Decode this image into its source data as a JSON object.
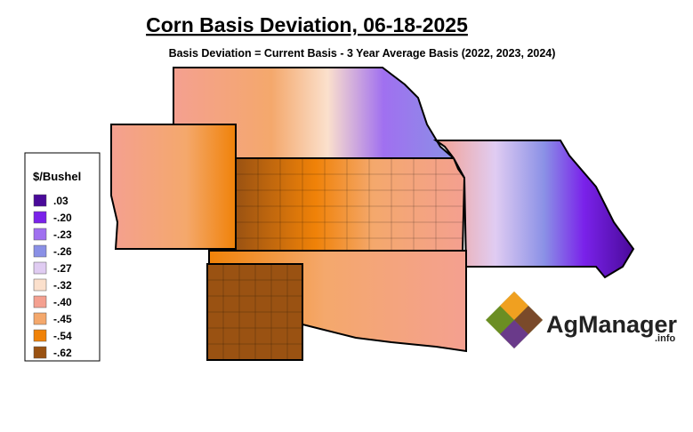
{
  "header": {
    "title": "Corn Basis Deviation, 06-18-2025",
    "subtitle": "Basis Deviation = Current Basis - 3 Year Average Basis (2022, 2023, 2024)"
  },
  "legend": {
    "title": "$/Bushel",
    "items": [
      {
        "label": ".03",
        "color": "#4a0a9a"
      },
      {
        "label": "-.20",
        "color": "#7a22ea"
      },
      {
        "label": "-.23",
        "color": "#a070f0"
      },
      {
        "label": "-.26",
        "color": "#8a90e6"
      },
      {
        "label": "-.27",
        "color": "#e0ccf2"
      },
      {
        "label": "-.32",
        "color": "#fbe0cc"
      },
      {
        "label": "-.40",
        "color": "#f4a090"
      },
      {
        "label": "-.45",
        "color": "#f4a86c"
      },
      {
        "label": "-.54",
        "color": "#f08208"
      },
      {
        "label": "-.62",
        "color": "#9a5212"
      }
    ]
  },
  "logo": {
    "name": "AgManager",
    "suffix": ".info"
  }
}
